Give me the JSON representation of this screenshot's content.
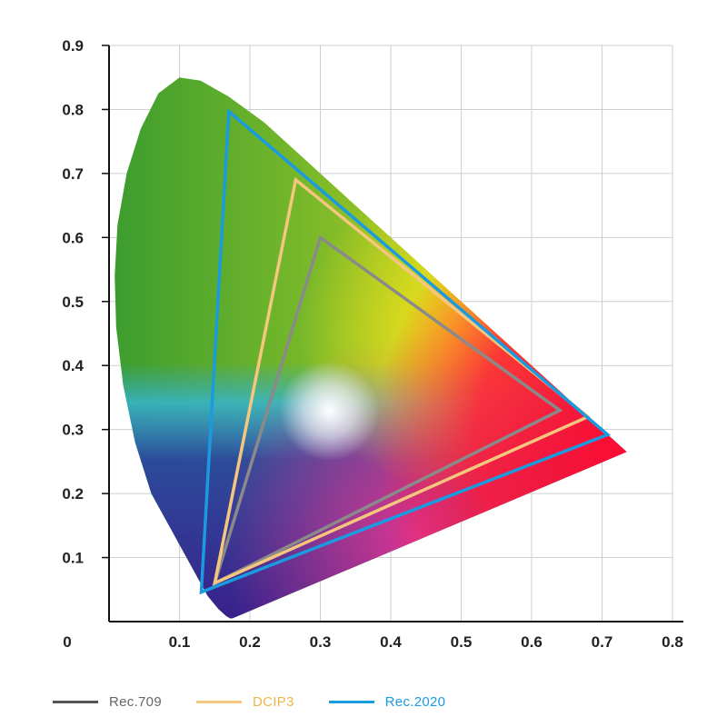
{
  "chart_data": {
    "type": "scatter",
    "title": "",
    "xlabel": "",
    "ylabel": "",
    "xlim": [
      0,
      0.8
    ],
    "ylim": [
      0,
      0.9
    ],
    "x_ticks": [
      "0.1",
      "0.2",
      "0.3",
      "0.4",
      "0.5",
      "0.6",
      "0.7",
      "0.8"
    ],
    "y_ticks": [
      "0.1",
      "0.2",
      "0.3",
      "0.4",
      "0.5",
      "0.6",
      "0.7",
      "0.8",
      "0.9"
    ],
    "origin_label": "0",
    "grid": true,
    "legend_position": "bottom",
    "spectral_locus": [
      [
        0.175,
        0.005
      ],
      [
        0.172,
        0.005
      ],
      [
        0.166,
        0.009
      ],
      [
        0.155,
        0.02
      ],
      [
        0.14,
        0.04
      ],
      [
        0.12,
        0.08
      ],
      [
        0.09,
        0.14
      ],
      [
        0.06,
        0.2
      ],
      [
        0.037,
        0.28
      ],
      [
        0.02,
        0.37
      ],
      [
        0.01,
        0.46
      ],
      [
        0.008,
        0.54
      ],
      [
        0.012,
        0.62
      ],
      [
        0.025,
        0.7
      ],
      [
        0.045,
        0.77
      ],
      [
        0.07,
        0.825
      ],
      [
        0.1,
        0.85
      ],
      [
        0.13,
        0.845
      ],
      [
        0.17,
        0.82
      ],
      [
        0.22,
        0.78
      ],
      [
        0.28,
        0.72
      ],
      [
        0.35,
        0.65
      ],
      [
        0.42,
        0.58
      ],
      [
        0.49,
        0.51
      ],
      [
        0.56,
        0.44
      ],
      [
        0.63,
        0.37
      ],
      [
        0.69,
        0.31
      ],
      [
        0.735,
        0.265
      ]
    ],
    "white_point": [
      0.3127,
      0.329
    ],
    "series": [
      {
        "name": "Rec.709",
        "color": "#8a8a8a",
        "points": [
          [
            0.64,
            0.33
          ],
          [
            0.3,
            0.6
          ],
          [
            0.15,
            0.06
          ]
        ]
      },
      {
        "name": "DCIP3",
        "color": "#f5c77e",
        "points": [
          [
            0.68,
            0.32
          ],
          [
            0.265,
            0.69
          ],
          [
            0.15,
            0.06
          ]
        ]
      },
      {
        "name": "Rec.2020",
        "color": "#1a9be0",
        "points": [
          [
            0.708,
            0.292
          ],
          [
            0.17,
            0.797
          ],
          [
            0.131,
            0.046
          ]
        ]
      }
    ]
  },
  "legend": {
    "items": [
      {
        "label": "Rec.709",
        "line_color": "#555555",
        "text_color": "#666666"
      },
      {
        "label": "DCIP3",
        "line_color": "#f5c77e",
        "text_color": "#f0b44a"
      },
      {
        "label": "Rec.2020",
        "line_color": "#1a9be0",
        "text_color": "#1a9be0"
      }
    ]
  }
}
